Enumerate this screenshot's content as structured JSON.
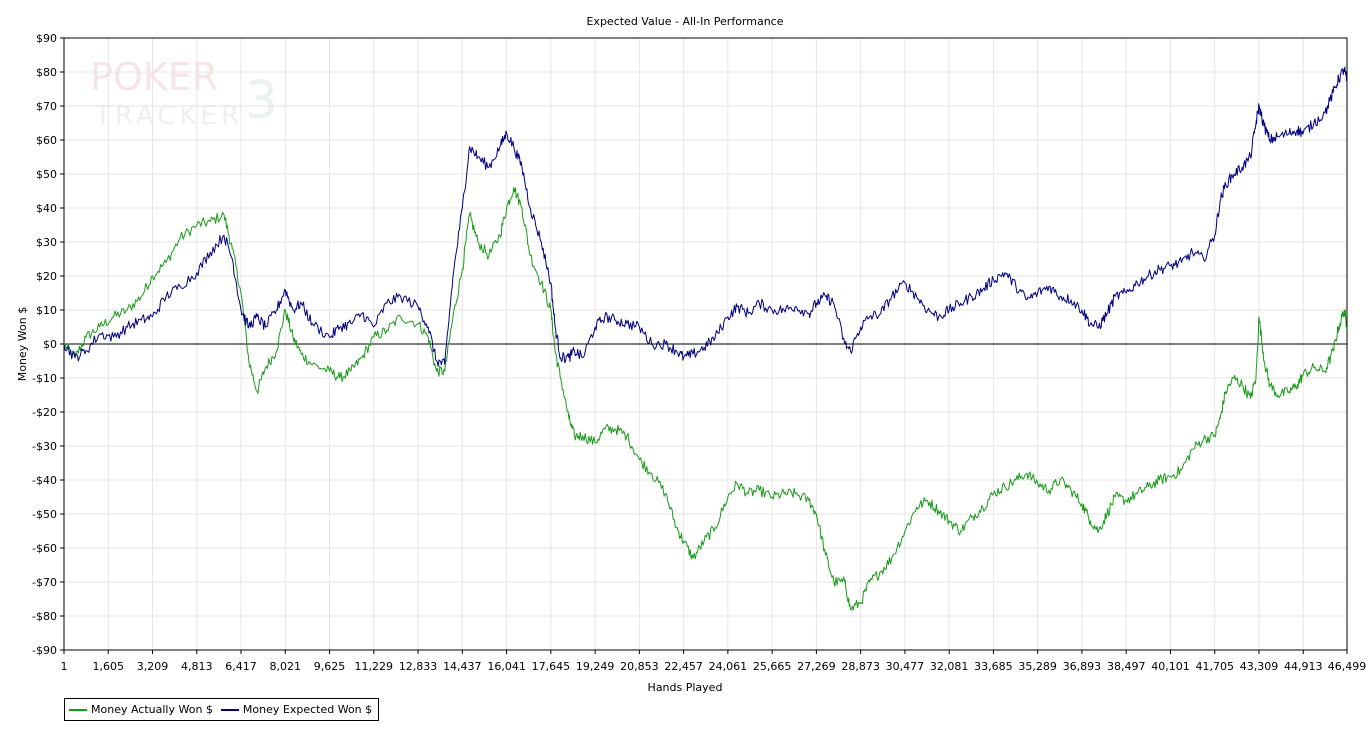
{
  "chart_data": {
    "type": "line",
    "title": "Expected Value - All-In Performance",
    "xlabel": "Hands Played",
    "ylabel": "Money Won $",
    "xlim": [
      1,
      46499
    ],
    "ylim": [
      -90,
      90
    ],
    "x_ticks": [
      1,
      1605,
      3209,
      4813,
      6417,
      8021,
      9625,
      11229,
      12833,
      14437,
      16041,
      17645,
      19249,
      20853,
      22457,
      24061,
      25665,
      27269,
      28873,
      30477,
      32081,
      33685,
      35289,
      36893,
      38497,
      40101,
      41705,
      43309,
      44913,
      46499
    ],
    "x_tick_labels": [
      "1",
      "1,605",
      "3,209",
      "4,813",
      "6,417",
      "8,021",
      "9,625",
      "11,229",
      "12,833",
      "14,437",
      "16,041",
      "17,645",
      "19,249",
      "20,853",
      "22,457",
      "24,061",
      "25,665",
      "27,269",
      "28,873",
      "30,477",
      "32,081",
      "33,685",
      "35,289",
      "36,893",
      "38,497",
      "40,101",
      "41,705",
      "43,309",
      "44,913",
      "46,499"
    ],
    "y_ticks": [
      90,
      80,
      70,
      60,
      50,
      40,
      30,
      20,
      10,
      0,
      -10,
      -20,
      -30,
      -40,
      -50,
      -60,
      -70,
      -80,
      -90
    ],
    "y_tick_labels": [
      "$90",
      "$80",
      "$70",
      "$60",
      "$50",
      "$40",
      "$30",
      "$20",
      "$10",
      "$0",
      "-$10",
      "-$20",
      "-$30",
      "-$40",
      "-$50",
      "-$60",
      "-$70",
      "-$80",
      "-$90"
    ],
    "grid": true,
    "legend_position": "bottom-left",
    "watermark": "POKER TRACKER 3",
    "series": [
      {
        "name": "Money Actually Won $",
        "color": "#1a9a1a",
        "points": [
          [
            1,
            0
          ],
          [
            400,
            -4
          ],
          [
            800,
            2
          ],
          [
            1300,
            5
          ],
          [
            1800,
            8
          ],
          [
            2300,
            10
          ],
          [
            2800,
            14
          ],
          [
            3209,
            20
          ],
          [
            3700,
            24
          ],
          [
            4200,
            31
          ],
          [
            4813,
            35
          ],
          [
            5300,
            36
          ],
          [
            5800,
            38
          ],
          [
            6100,
            28
          ],
          [
            6417,
            15
          ],
          [
            6700,
            -5
          ],
          [
            7000,
            -14
          ],
          [
            7300,
            -7
          ],
          [
            7700,
            -2
          ],
          [
            8021,
            10
          ],
          [
            8300,
            2
          ],
          [
            8600,
            -3
          ],
          [
            9000,
            -6
          ],
          [
            9625,
            -8
          ],
          [
            10000,
            -10
          ],
          [
            10400,
            -8
          ],
          [
            10800,
            -4
          ],
          [
            11229,
            2
          ],
          [
            11700,
            4
          ],
          [
            12200,
            8
          ],
          [
            12833,
            6
          ],
          [
            13200,
            2
          ],
          [
            13500,
            -8
          ],
          [
            13800,
            -8
          ],
          [
            14100,
            8
          ],
          [
            14437,
            22
          ],
          [
            14700,
            38
          ],
          [
            15000,
            30
          ],
          [
            15400,
            26
          ],
          [
            15800,
            32
          ],
          [
            16041,
            40
          ],
          [
            16300,
            46
          ],
          [
            16600,
            40
          ],
          [
            16900,
            26
          ],
          [
            17300,
            18
          ],
          [
            17645,
            10
          ],
          [
            17800,
            -2
          ],
          [
            18000,
            -10
          ],
          [
            18300,
            -22
          ],
          [
            18500,
            -27
          ],
          [
            18800,
            -27
          ],
          [
            19249,
            -29
          ],
          [
            19600,
            -25
          ],
          [
            20000,
            -25
          ],
          [
            20400,
            -27
          ],
          [
            20853,
            -34
          ],
          [
            21300,
            -38
          ],
          [
            21800,
            -44
          ],
          [
            22200,
            -54
          ],
          [
            22457,
            -58
          ],
          [
            22800,
            -63
          ],
          [
            23200,
            -58
          ],
          [
            23600,
            -54
          ],
          [
            24061,
            -45
          ],
          [
            24400,
            -41
          ],
          [
            24800,
            -44
          ],
          [
            25200,
            -43
          ],
          [
            25665,
            -45
          ],
          [
            26100,
            -44
          ],
          [
            26500,
            -44
          ],
          [
            27000,
            -46
          ],
          [
            27269,
            -50
          ],
          [
            27600,
            -62
          ],
          [
            27900,
            -70
          ],
          [
            28300,
            -70
          ],
          [
            28500,
            -78
          ],
          [
            28873,
            -76
          ],
          [
            29200,
            -70
          ],
          [
            29600,
            -67
          ],
          [
            30000,
            -63
          ],
          [
            30477,
            -55
          ],
          [
            30900,
            -48
          ],
          [
            31300,
            -46
          ],
          [
            31700,
            -49
          ],
          [
            32081,
            -52
          ],
          [
            32500,
            -55
          ],
          [
            32900,
            -51
          ],
          [
            33300,
            -48
          ],
          [
            33685,
            -44
          ],
          [
            34100,
            -42
          ],
          [
            34500,
            -40
          ],
          [
            34900,
            -38
          ],
          [
            35289,
            -41
          ],
          [
            35700,
            -43
          ],
          [
            36100,
            -40
          ],
          [
            36500,
            -43
          ],
          [
            36893,
            -47
          ],
          [
            37200,
            -52
          ],
          [
            37500,
            -55
          ],
          [
            37800,
            -50
          ],
          [
            38100,
            -45
          ],
          [
            38497,
            -46
          ],
          [
            38900,
            -44
          ],
          [
            39300,
            -42
          ],
          [
            39700,
            -40
          ],
          [
            40101,
            -39
          ],
          [
            40500,
            -37
          ],
          [
            40900,
            -31
          ],
          [
            41300,
            -28
          ],
          [
            41705,
            -27
          ],
          [
            41900,
            -22
          ],
          [
            42100,
            -14
          ],
          [
            42400,
            -10
          ],
          [
            42700,
            -12
          ],
          [
            43000,
            -16
          ],
          [
            43200,
            -10
          ],
          [
            43309,
            8
          ],
          [
            43500,
            -5
          ],
          [
            43700,
            -12
          ],
          [
            44000,
            -15
          ],
          [
            44400,
            -14
          ],
          [
            44700,
            -12
          ],
          [
            44913,
            -9
          ],
          [
            45300,
            -7
          ],
          [
            45700,
            -8
          ],
          [
            46000,
            -2
          ],
          [
            46200,
            5
          ],
          [
            46400,
            10
          ],
          [
            46499,
            5
          ]
        ]
      },
      {
        "name": "Money Expected Won $",
        "color": "#000080",
        "points": [
          [
            1,
            0
          ],
          [
            400,
            -4
          ],
          [
            800,
            -2
          ],
          [
            1300,
            3
          ],
          [
            1800,
            2
          ],
          [
            2300,
            5
          ],
          [
            2800,
            7
          ],
          [
            3209,
            8
          ],
          [
            3700,
            14
          ],
          [
            4200,
            17
          ],
          [
            4813,
            21
          ],
          [
            5300,
            27
          ],
          [
            5800,
            32
          ],
          [
            6100,
            25
          ],
          [
            6417,
            10
          ],
          [
            6700,
            5
          ],
          [
            7000,
            8
          ],
          [
            7300,
            5
          ],
          [
            7700,
            10
          ],
          [
            8021,
            16
          ],
          [
            8300,
            10
          ],
          [
            8600,
            12
          ],
          [
            9000,
            6
          ],
          [
            9625,
            2
          ],
          [
            10000,
            5
          ],
          [
            10400,
            6
          ],
          [
            10800,
            9
          ],
          [
            11229,
            5
          ],
          [
            11700,
            12
          ],
          [
            12200,
            14
          ],
          [
            12833,
            11
          ],
          [
            13200,
            5
          ],
          [
            13500,
            -5
          ],
          [
            13800,
            -6
          ],
          [
            14100,
            20
          ],
          [
            14437,
            40
          ],
          [
            14700,
            58
          ],
          [
            15000,
            55
          ],
          [
            15400,
            52
          ],
          [
            15800,
            58
          ],
          [
            16041,
            62
          ],
          [
            16300,
            58
          ],
          [
            16600,
            52
          ],
          [
            16900,
            40
          ],
          [
            17300,
            30
          ],
          [
            17645,
            18
          ],
          [
            17800,
            5
          ],
          [
            18000,
            -4
          ],
          [
            18300,
            -4
          ],
          [
            18500,
            -2
          ],
          [
            18800,
            -4
          ],
          [
            19249,
            5
          ],
          [
            19600,
            8
          ],
          [
            20000,
            7
          ],
          [
            20400,
            6
          ],
          [
            20853,
            5
          ],
          [
            21300,
            0
          ],
          [
            21800,
            0
          ],
          [
            22200,
            -2
          ],
          [
            22457,
            -4
          ],
          [
            22800,
            -3
          ],
          [
            23200,
            -1
          ],
          [
            23600,
            2
          ],
          [
            24061,
            8
          ],
          [
            24400,
            11
          ],
          [
            24800,
            9
          ],
          [
            25200,
            12
          ],
          [
            25665,
            10
          ],
          [
            26100,
            10
          ],
          [
            26500,
            11
          ],
          [
            27000,
            9
          ],
          [
            27269,
            12
          ],
          [
            27600,
            14
          ],
          [
            27900,
            12
          ],
          [
            28300,
            0
          ],
          [
            28500,
            -2
          ],
          [
            28873,
            5
          ],
          [
            29200,
            8
          ],
          [
            29600,
            9
          ],
          [
            30000,
            14
          ],
          [
            30477,
            18
          ],
          [
            30900,
            14
          ],
          [
            31300,
            10
          ],
          [
            31700,
            8
          ],
          [
            32081,
            10
          ],
          [
            32500,
            12
          ],
          [
            32900,
            14
          ],
          [
            33300,
            16
          ],
          [
            33685,
            19
          ],
          [
            34100,
            21
          ],
          [
            34500,
            17
          ],
          [
            34900,
            13
          ],
          [
            35289,
            15
          ],
          [
            35700,
            17
          ],
          [
            36100,
            14
          ],
          [
            36500,
            13
          ],
          [
            36893,
            10
          ],
          [
            37200,
            6
          ],
          [
            37500,
            5
          ],
          [
            37800,
            9
          ],
          [
            38100,
            14
          ],
          [
            38497,
            15
          ],
          [
            38900,
            18
          ],
          [
            39300,
            20
          ],
          [
            39700,
            22
          ],
          [
            40101,
            23
          ],
          [
            40500,
            24
          ],
          [
            40900,
            27
          ],
          [
            41300,
            25
          ],
          [
            41705,
            32
          ],
          [
            41900,
            42
          ],
          [
            42100,
            47
          ],
          [
            42400,
            50
          ],
          [
            42700,
            52
          ],
          [
            43000,
            55
          ],
          [
            43200,
            65
          ],
          [
            43309,
            70
          ],
          [
            43500,
            64
          ],
          [
            43700,
            60
          ],
          [
            44000,
            61
          ],
          [
            44400,
            62
          ],
          [
            44700,
            63
          ],
          [
            44913,
            62
          ],
          [
            45300,
            65
          ],
          [
            45700,
            68
          ],
          [
            46000,
            74
          ],
          [
            46200,
            78
          ],
          [
            46400,
            81
          ],
          [
            46499,
            77
          ]
        ]
      }
    ]
  }
}
